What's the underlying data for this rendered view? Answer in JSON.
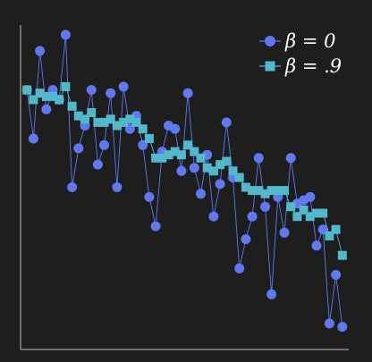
{
  "colors": {
    "background": "#1e1e1e",
    "axis": "#8c8c8c",
    "series_a": "#6079f0",
    "series_b": "#52b8cc",
    "legend_text": "#ffffff"
  },
  "chart_data": {
    "type": "line",
    "xlim": [
      0,
      51
    ],
    "ylim": [
      0,
      100
    ],
    "grid": false,
    "legend_position": "top-right",
    "series": [
      {
        "name": "β = 0",
        "marker": "circle",
        "x": [
          1,
          2,
          3,
          4,
          5,
          6,
          7,
          8,
          9,
          10,
          11,
          12,
          13,
          14,
          15,
          16,
          17,
          18,
          19,
          20,
          21,
          22,
          23,
          24,
          25,
          26,
          27,
          28,
          29,
          30,
          31,
          32,
          33,
          34,
          35,
          36,
          37,
          38,
          39,
          40,
          41,
          42,
          43,
          44,
          45,
          46,
          47,
          48,
          49,
          50
        ],
        "y": [
          80,
          65,
          92,
          74,
          80,
          77,
          97,
          50,
          62,
          69,
          80,
          57,
          63,
          79,
          50,
          81,
          68,
          72,
          63,
          47,
          38,
          61,
          69,
          68,
          55,
          79,
          56,
          48,
          60,
          41,
          51,
          70,
          53,
          25,
          34,
          41,
          59,
          44,
          17,
          47,
          36,
          59,
          45,
          46,
          47,
          32,
          37,
          8,
          23,
          7
        ]
      },
      {
        "name": "β = .9",
        "marker": "square",
        "x": [
          1,
          2,
          3,
          4,
          5,
          6,
          7,
          8,
          9,
          10,
          11,
          12,
          13,
          14,
          15,
          16,
          17,
          18,
          19,
          20,
          21,
          22,
          23,
          24,
          25,
          26,
          27,
          28,
          29,
          30,
          31,
          32,
          33,
          34,
          35,
          36,
          37,
          38,
          39,
          40,
          41,
          42,
          43,
          44,
          45,
          46,
          47,
          48,
          49,
          50
        ],
        "y": [
          80,
          77,
          79,
          78,
          78,
          77,
          81,
          75,
          72,
          71,
          73,
          70,
          70,
          71,
          69,
          70,
          71,
          70,
          68,
          65,
          59,
          59,
          60,
          61,
          60,
          63,
          61,
          59,
          56,
          55,
          57,
          58,
          55,
          53,
          50,
          49,
          49,
          48,
          49,
          49,
          49,
          44,
          41,
          43,
          41,
          42,
          42,
          35,
          37,
          29
        ]
      }
    ]
  }
}
